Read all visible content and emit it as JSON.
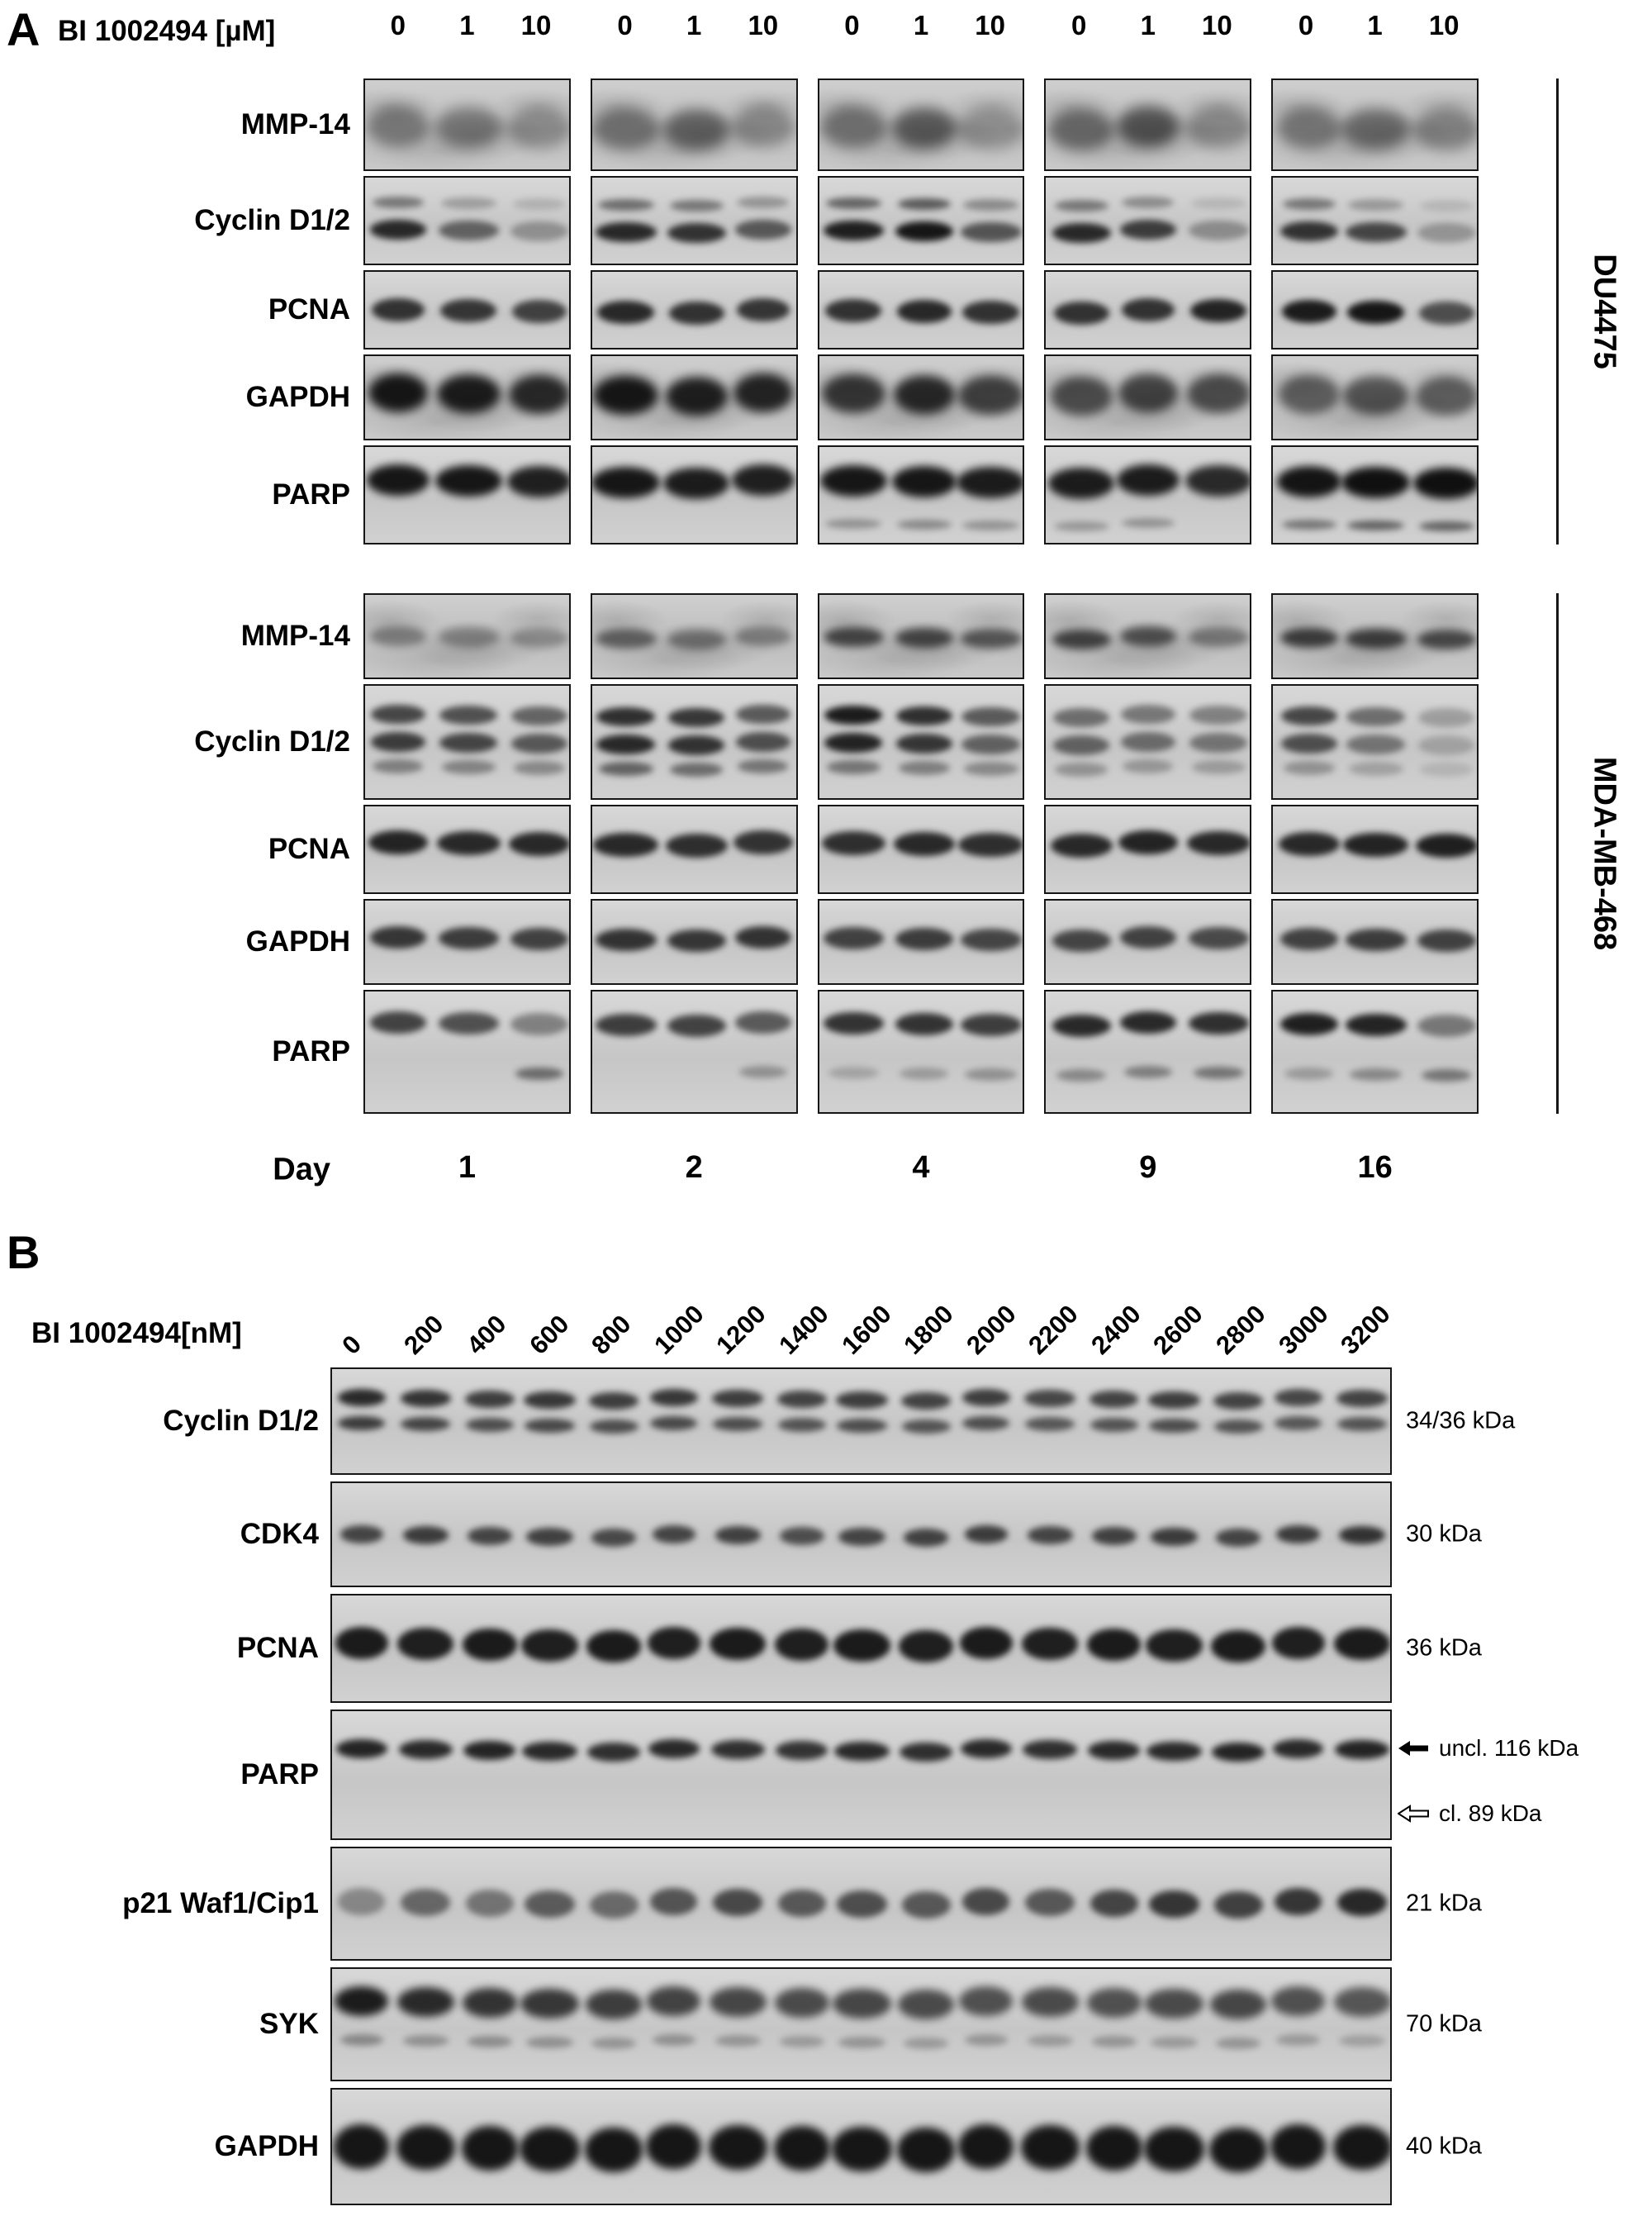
{
  "figure": {
    "panel_a": {
      "label": "A",
      "header_label": "BI 1002494 [µM]",
      "dose_labels": [
        "0",
        "1",
        "10"
      ],
      "day_label": "Day",
      "day_values": [
        "1",
        "2",
        "4",
        "9",
        "16"
      ],
      "cell_lines": [
        {
          "name": "DU4475",
          "rows": [
            {
              "label": "MMP-14",
              "texture": "noisy",
              "layers": [
                {
                  "p": 0.52,
                  "t": 0.45,
                  "w": 0.95,
                  "b": 8,
                  "i": [
                    0.4,
                    0.38,
                    0.3,
                    0.45,
                    0.5,
                    0.32,
                    0.45,
                    0.55,
                    0.28,
                    0.5,
                    0.6,
                    0.32,
                    0.42,
                    0.46,
                    0.36
                  ]
                }
              ]
            },
            {
              "label": "Cyclin D1/2",
              "layers": [
                {
                  "p": 0.3,
                  "t": 0.13,
                  "w": 0.78,
                  "i": [
                    0.45,
                    0.25,
                    0.15,
                    0.5,
                    0.45,
                    0.3,
                    0.55,
                    0.6,
                    0.35,
                    0.45,
                    0.35,
                    0.12,
                    0.45,
                    0.28,
                    0.12
                  ]
                },
                {
                  "p": 0.6,
                  "t": 0.22,
                  "w": 0.85,
                  "i": [
                    0.85,
                    0.55,
                    0.3,
                    0.85,
                    0.8,
                    0.6,
                    0.9,
                    0.95,
                    0.62,
                    0.85,
                    0.75,
                    0.32,
                    0.8,
                    0.7,
                    0.28
                  ]
                }
              ]
            },
            {
              "label": "PCNA",
              "layers": [
                {
                  "p": 0.5,
                  "t": 0.3,
                  "w": 0.8,
                  "i": [
                    0.8,
                    0.78,
                    0.72,
                    0.85,
                    0.8,
                    0.78,
                    0.8,
                    0.85,
                    0.8,
                    0.8,
                    0.8,
                    0.88,
                    0.92,
                    0.95,
                    0.65
                  ]
                }
              ]
            },
            {
              "label": "GAPDH",
              "texture": "noisy",
              "layers": [
                {
                  "p": 0.45,
                  "t": 0.45,
                  "w": 0.9,
                  "b": 6,
                  "i": [
                    0.95,
                    0.92,
                    0.85,
                    0.95,
                    0.9,
                    0.88,
                    0.78,
                    0.85,
                    0.72,
                    0.65,
                    0.7,
                    0.65,
                    0.55,
                    0.6,
                    0.55
                  ]
                }
              ]
            },
            {
              "label": "PARP",
              "layers": [
                {
                  "p": 0.35,
                  "t": 0.32,
                  "w": 0.95,
                  "b": 5,
                  "i": [
                    0.95,
                    0.95,
                    0.9,
                    0.95,
                    0.92,
                    0.9,
                    0.95,
                    0.95,
                    0.92,
                    0.92,
                    0.92,
                    0.85,
                    0.96,
                    0.98,
                    0.98
                  ]
                },
                {
                  "p": 0.78,
                  "t": 0.1,
                  "w": 0.8,
                  "i": [
                    0,
                    0,
                    0,
                    0,
                    0,
                    0,
                    0.3,
                    0.35,
                    0.3,
                    0.28,
                    0.3,
                    0,
                    0.45,
                    0.55,
                    0.55
                  ]
                }
              ]
            }
          ]
        },
        {
          "name": "MDA-MB-468",
          "rows": [
            {
              "label": "MMP-14",
              "texture": "noisy",
              "layers": [
                {
                  "p": 0.5,
                  "t": 0.24,
                  "w": 0.85,
                  "b": 5,
                  "i": [
                    0.38,
                    0.32,
                    0.3,
                    0.55,
                    0.42,
                    0.38,
                    0.7,
                    0.68,
                    0.6,
                    0.72,
                    0.62,
                    0.42,
                    0.75,
                    0.72,
                    0.68
                  ]
                }
              ]
            },
            {
              "label": "Cyclin D1/2",
              "layers": [
                {
                  "p": 0.26,
                  "t": 0.17,
                  "w": 0.82,
                  "i": [
                    0.7,
                    0.65,
                    0.55,
                    0.82,
                    0.78,
                    0.6,
                    0.92,
                    0.82,
                    0.6,
                    0.5,
                    0.45,
                    0.4,
                    0.7,
                    0.5,
                    0.25
                  ]
                },
                {
                  "p": 0.5,
                  "t": 0.17,
                  "w": 0.82,
                  "i": [
                    0.75,
                    0.7,
                    0.6,
                    0.85,
                    0.8,
                    0.65,
                    0.88,
                    0.78,
                    0.55,
                    0.55,
                    0.5,
                    0.45,
                    0.65,
                    0.45,
                    0.2
                  ]
                },
                {
                  "p": 0.71,
                  "t": 0.12,
                  "w": 0.76,
                  "i": [
                    0.4,
                    0.38,
                    0.35,
                    0.55,
                    0.5,
                    0.45,
                    0.45,
                    0.4,
                    0.35,
                    0.3,
                    0.28,
                    0.25,
                    0.3,
                    0.22,
                    0.12
                  ]
                }
              ]
            },
            {
              "label": "PCNA",
              "layers": [
                {
                  "p": 0.42,
                  "t": 0.27,
                  "w": 0.9,
                  "i": [
                    0.88,
                    0.85,
                    0.85,
                    0.85,
                    0.82,
                    0.8,
                    0.82,
                    0.85,
                    0.82,
                    0.85,
                    0.88,
                    0.85,
                    0.85,
                    0.88,
                    0.9
                  ]
                }
              ]
            },
            {
              "label": "GAPDH",
              "layers": [
                {
                  "p": 0.45,
                  "t": 0.26,
                  "w": 0.85,
                  "i": [
                    0.78,
                    0.75,
                    0.72,
                    0.8,
                    0.78,
                    0.8,
                    0.72,
                    0.75,
                    0.7,
                    0.7,
                    0.72,
                    0.68,
                    0.72,
                    0.75,
                    0.72
                  ]
                }
              ]
            },
            {
              "label": "PARP",
              "layers": [
                {
                  "p": 0.26,
                  "t": 0.18,
                  "w": 0.85,
                  "i": [
                    0.72,
                    0.65,
                    0.4,
                    0.75,
                    0.72,
                    0.6,
                    0.8,
                    0.8,
                    0.75,
                    0.85,
                    0.85,
                    0.82,
                    0.9,
                    0.88,
                    0.45
                  ]
                },
                {
                  "p": 0.66,
                  "t": 0.1,
                  "w": 0.72,
                  "i": [
                    0,
                    0,
                    0.5,
                    0,
                    0,
                    0.3,
                    0.2,
                    0.25,
                    0.3,
                    0.35,
                    0.4,
                    0.45,
                    0.25,
                    0.35,
                    0.45
                  ]
                }
              ]
            }
          ]
        }
      ]
    },
    "panel_b": {
      "label": "B",
      "header_label": "BI 1002494[nM]",
      "dose_labels": [
        "0",
        "200",
        "400",
        "600",
        "800",
        "1000",
        "1200",
        "1400",
        "1600",
        "1800",
        "2000",
        "2200",
        "2400",
        "2600",
        "2800",
        "3000",
        "3200"
      ],
      "rows": [
        {
          "label": "Cyclin D1/2",
          "kda": "34/36 kDa",
          "layers": [
            {
              "p": 0.28,
              "t": 0.16,
              "w": 0.8,
              "i": [
                0.85,
                0.8,
                0.75,
                0.78,
                0.75,
                0.78,
                0.75,
                0.72,
                0.75,
                0.72,
                0.75,
                0.7,
                0.72,
                0.75,
                0.72,
                0.7,
                0.72
              ]
            },
            {
              "p": 0.52,
              "t": 0.13,
              "w": 0.78,
              "i": [
                0.75,
                0.7,
                0.65,
                0.68,
                0.65,
                0.68,
                0.65,
                0.62,
                0.65,
                0.62,
                0.65,
                0.6,
                0.62,
                0.65,
                0.62,
                0.6,
                0.62
              ]
            }
          ]
        },
        {
          "label": "CDK4",
          "kda": "30 kDa",
          "layers": [
            {
              "p": 0.5,
              "t": 0.17,
              "w": 0.72,
              "i": [
                0.7,
                0.75,
                0.7,
                0.72,
                0.68,
                0.7,
                0.72,
                0.65,
                0.7,
                0.72,
                0.75,
                0.7,
                0.72,
                0.75,
                0.7,
                0.75,
                0.8
              ]
            }
          ]
        },
        {
          "label": "PCNA",
          "kda": "36 kDa",
          "layers": [
            {
              "p": 0.45,
              "t": 0.3,
              "w": 0.88,
              "i": [
                0.92,
                0.9,
                0.92,
                0.9,
                0.92,
                0.9,
                0.92,
                0.9,
                0.92,
                0.9,
                0.92,
                0.9,
                0.92,
                0.9,
                0.92,
                0.9,
                0.92
              ]
            }
          ]
        },
        {
          "label": "PARP",
          "annotations": [
            {
              "arrow": "filled",
              "text": "uncl. 116 kDa"
            },
            {
              "arrow": "open",
              "text": "cl. 89 kDa"
            }
          ],
          "layers": [
            {
              "p": 0.3,
              "t": 0.15,
              "w": 0.85,
              "i": [
                0.88,
                0.85,
                0.88,
                0.85,
                0.82,
                0.85,
                0.82,
                0.8,
                0.85,
                0.82,
                0.85,
                0.82,
                0.85,
                0.85,
                0.88,
                0.85,
                0.88
              ]
            }
          ]
        },
        {
          "label": "p21 Waf1/Cip1",
          "kda": "21 kDa",
          "layers": [
            {
              "p": 0.48,
              "t": 0.24,
              "w": 0.78,
              "i": [
                0.35,
                0.52,
                0.45,
                0.58,
                0.5,
                0.62,
                0.68,
                0.6,
                0.65,
                0.6,
                0.68,
                0.6,
                0.7,
                0.78,
                0.72,
                0.78,
                0.85
              ]
            }
          ]
        },
        {
          "label": "SYK",
          "kda": "70 kDa",
          "layers": [
            {
              "p": 0.3,
              "t": 0.26,
              "w": 0.9,
              "b": 5,
              "i": [
                0.92,
                0.85,
                0.8,
                0.78,
                0.75,
                0.72,
                0.7,
                0.68,
                0.7,
                0.68,
                0.65,
                0.68,
                0.65,
                0.68,
                0.7,
                0.65,
                0.62
              ]
            },
            {
              "p": 0.64,
              "t": 0.1,
              "w": 0.72,
              "i": [
                0.35,
                0.3,
                0.32,
                0.3,
                0.28,
                0.3,
                0.28,
                0.25,
                0.28,
                0.25,
                0.28,
                0.25,
                0.28,
                0.25,
                0.28,
                0.25,
                0.22
              ]
            }
          ]
        },
        {
          "label": "GAPDH",
          "kda": "40 kDa",
          "layers": [
            {
              "p": 0.5,
              "t": 0.38,
              "w": 0.92,
              "b": 5,
              "i": [
                0.95,
                0.95,
                0.95,
                0.95,
                0.95,
                0.95,
                0.95,
                0.95,
                0.95,
                0.95,
                0.95,
                0.95,
                0.95,
                0.95,
                0.95,
                0.95,
                0.95
              ]
            }
          ]
        }
      ]
    }
  }
}
